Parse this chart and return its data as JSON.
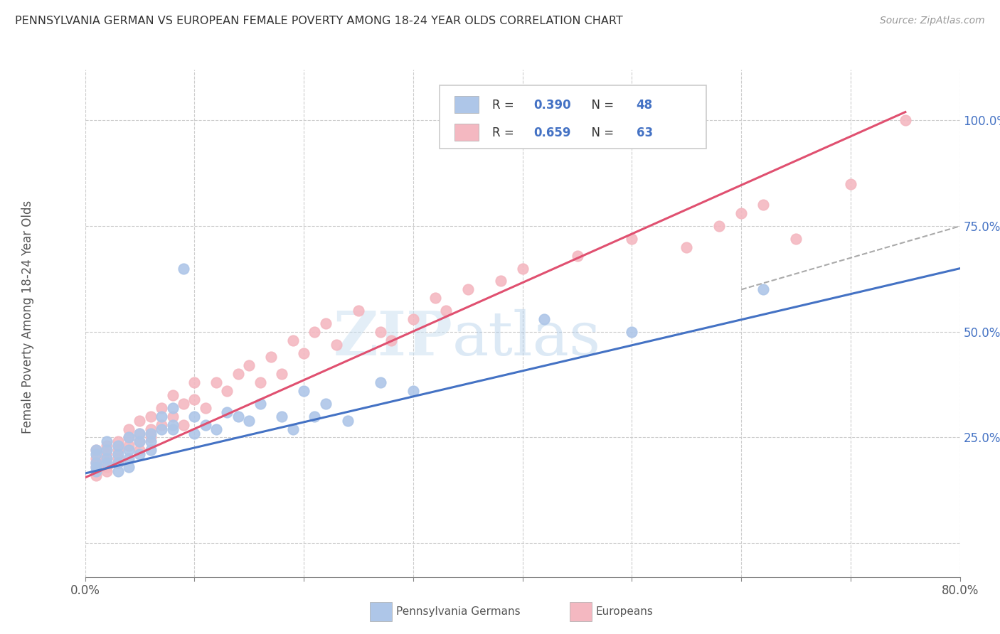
{
  "title": "PENNSYLVANIA GERMAN VS EUROPEAN FEMALE POVERTY AMONG 18-24 YEAR OLDS CORRELATION CHART",
  "source": "Source: ZipAtlas.com",
  "ylabel": "Female Poverty Among 18-24 Year Olds",
  "xlim": [
    0.0,
    0.8
  ],
  "ylim": [
    -0.08,
    1.12
  ],
  "x_ticks": [
    0.0,
    0.1,
    0.2,
    0.3,
    0.4,
    0.5,
    0.6,
    0.7,
    0.8
  ],
  "y_ticks": [
    0.0,
    0.25,
    0.5,
    0.75,
    1.0
  ],
  "R_penn": 0.39,
  "N_penn": 48,
  "R_euro": 0.659,
  "N_euro": 63,
  "penn_color": "#aec6e8",
  "euro_color": "#f4b8c1",
  "penn_line_color": "#4472c4",
  "euro_line_color": "#e05070",
  "watermark_zip": "ZIP",
  "watermark_atlas": "atlas",
  "background_color": "#ffffff",
  "grid_color": "#cccccc",
  "penn_scatter_x": [
    0.01,
    0.01,
    0.01,
    0.01,
    0.01,
    0.02,
    0.02,
    0.02,
    0.02,
    0.03,
    0.03,
    0.03,
    0.03,
    0.04,
    0.04,
    0.04,
    0.04,
    0.05,
    0.05,
    0.05,
    0.06,
    0.06,
    0.06,
    0.07,
    0.07,
    0.08,
    0.08,
    0.08,
    0.09,
    0.1,
    0.1,
    0.11,
    0.12,
    0.13,
    0.14,
    0.15,
    0.16,
    0.18,
    0.19,
    0.2,
    0.21,
    0.22,
    0.24,
    0.27,
    0.3,
    0.42,
    0.5,
    0.62
  ],
  "penn_scatter_y": [
    0.17,
    0.19,
    0.21,
    0.22,
    0.18,
    0.2,
    0.22,
    0.24,
    0.19,
    0.21,
    0.23,
    0.17,
    0.19,
    0.22,
    0.25,
    0.2,
    0.18,
    0.24,
    0.21,
    0.26,
    0.24,
    0.26,
    0.22,
    0.3,
    0.27,
    0.28,
    0.32,
    0.27,
    0.65,
    0.26,
    0.3,
    0.28,
    0.27,
    0.31,
    0.3,
    0.29,
    0.33,
    0.3,
    0.27,
    0.36,
    0.3,
    0.33,
    0.29,
    0.38,
    0.36,
    0.53,
    0.5,
    0.6
  ],
  "euro_scatter_x": [
    0.01,
    0.01,
    0.01,
    0.01,
    0.01,
    0.02,
    0.02,
    0.02,
    0.02,
    0.02,
    0.03,
    0.03,
    0.03,
    0.03,
    0.04,
    0.04,
    0.04,
    0.05,
    0.05,
    0.05,
    0.05,
    0.06,
    0.06,
    0.06,
    0.07,
    0.07,
    0.08,
    0.08,
    0.09,
    0.09,
    0.1,
    0.1,
    0.11,
    0.12,
    0.13,
    0.14,
    0.15,
    0.16,
    0.17,
    0.18,
    0.19,
    0.2,
    0.21,
    0.22,
    0.23,
    0.25,
    0.27,
    0.28,
    0.3,
    0.32,
    0.33,
    0.35,
    0.38,
    0.4,
    0.45,
    0.5,
    0.55,
    0.58,
    0.6,
    0.62,
    0.65,
    0.7,
    0.75
  ],
  "euro_scatter_y": [
    0.18,
    0.2,
    0.22,
    0.19,
    0.16,
    0.21,
    0.23,
    0.18,
    0.2,
    0.17,
    0.22,
    0.24,
    0.2,
    0.19,
    0.23,
    0.25,
    0.27,
    0.22,
    0.24,
    0.26,
    0.29,
    0.25,
    0.27,
    0.3,
    0.28,
    0.32,
    0.3,
    0.35,
    0.28,
    0.33,
    0.34,
    0.38,
    0.32,
    0.38,
    0.36,
    0.4,
    0.42,
    0.38,
    0.44,
    0.4,
    0.48,
    0.45,
    0.5,
    0.52,
    0.47,
    0.55,
    0.5,
    0.48,
    0.53,
    0.58,
    0.55,
    0.6,
    0.62,
    0.65,
    0.68,
    0.72,
    0.7,
    0.75,
    0.78,
    0.8,
    0.72,
    0.85,
    1.0
  ],
  "euro_line_x0": 0.0,
  "euro_line_y0": 0.155,
  "euro_line_x1": 0.75,
  "euro_line_y1": 1.02,
  "penn_line_x0": 0.0,
  "penn_line_y0": 0.165,
  "penn_line_x1": 0.8,
  "penn_line_y1": 0.65,
  "dash_line_x0": 0.6,
  "dash_line_y0": 0.6,
  "dash_line_x1": 0.8,
  "dash_line_y1": 0.75
}
